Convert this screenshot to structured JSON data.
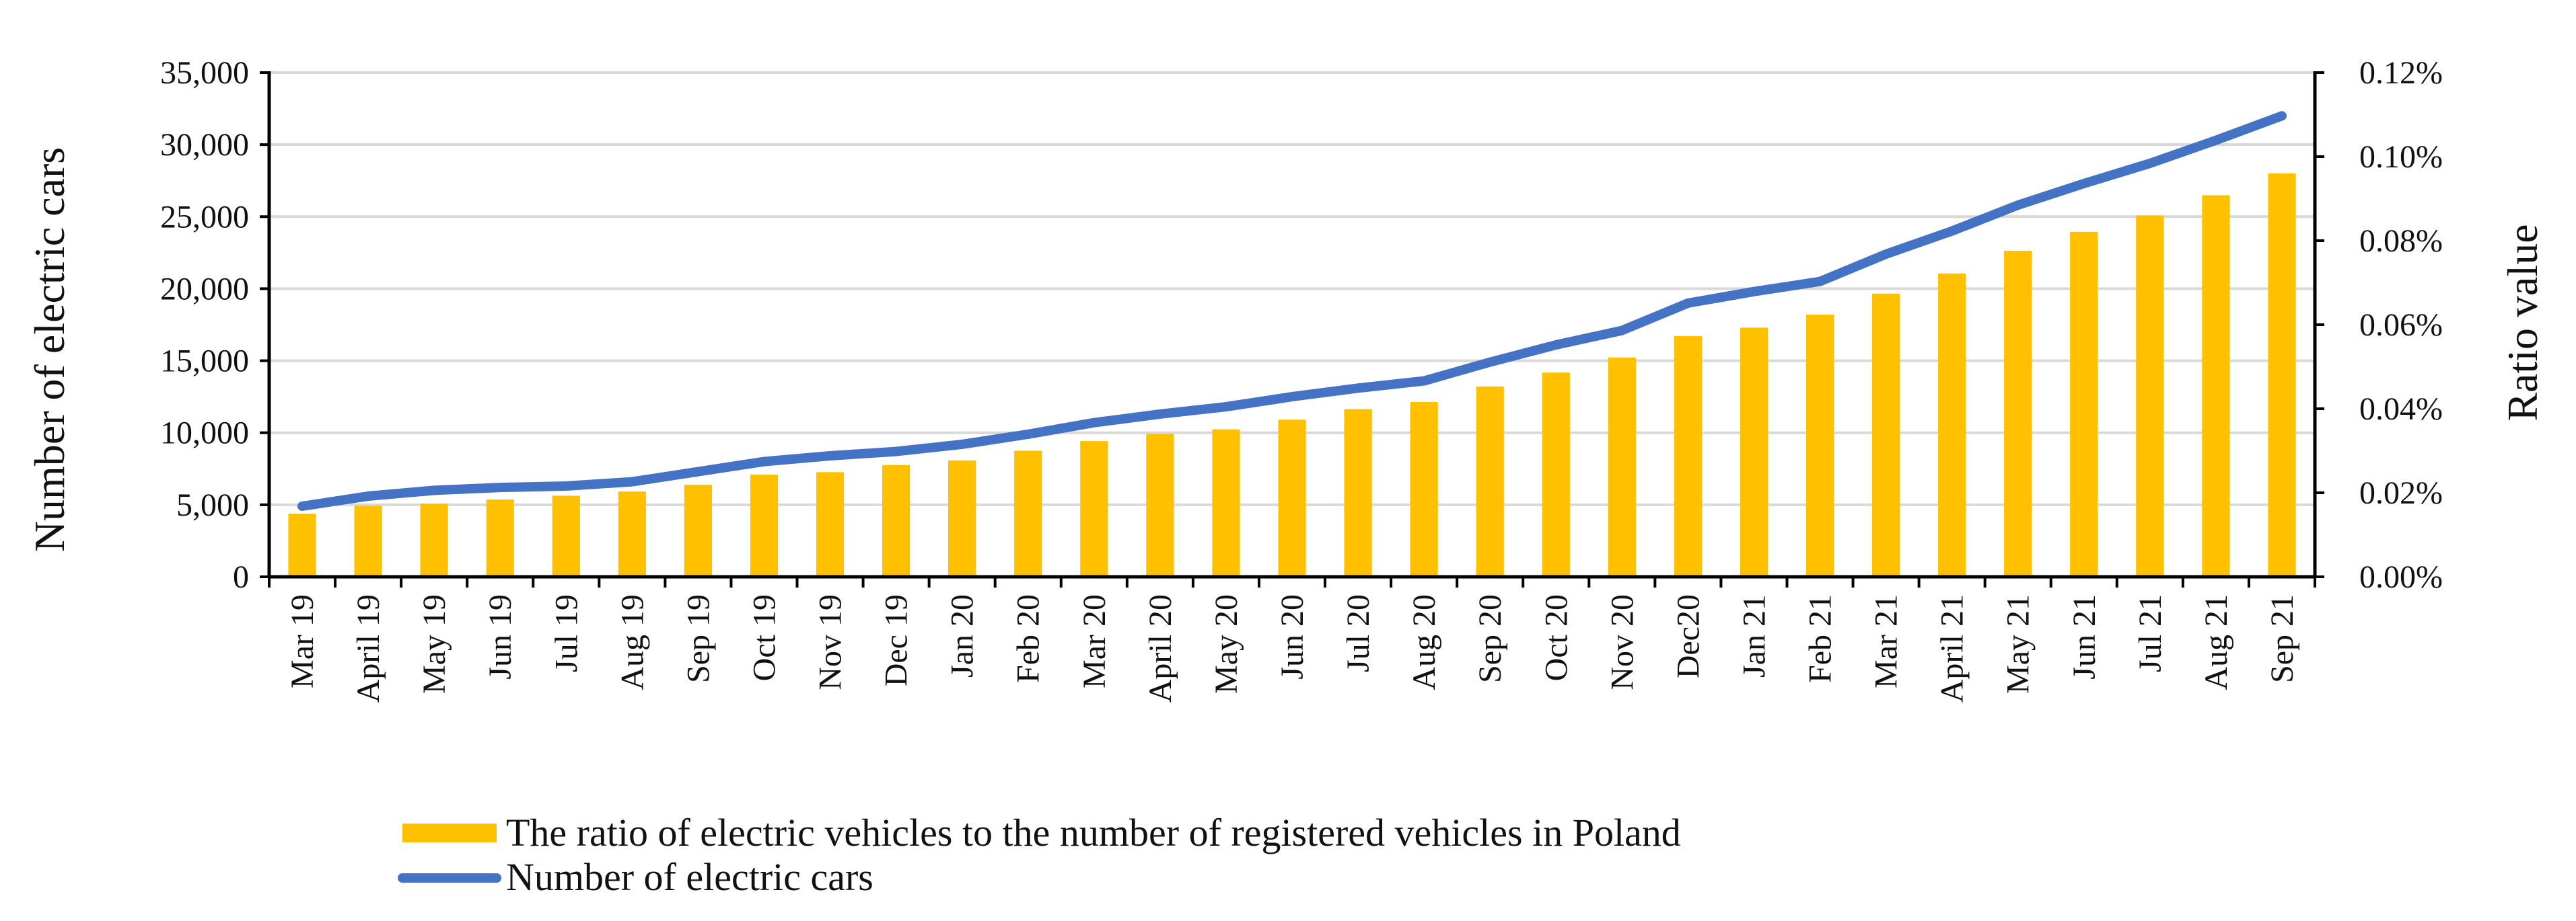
{
  "chart_data": {
    "type": "bar+line",
    "categories": [
      "Mar 19",
      "April 19",
      "May 19",
      "Jun 19",
      "Jul 19",
      "Aug 19",
      "Sep 19",
      "Oct 19",
      "Nov 19",
      "Dec 19",
      "Jan 20",
      "Feb 20",
      "Mar 20",
      "April 20",
      "May 20",
      "Jun 20",
      "Jul 20",
      "Aug 20",
      "Sep 20",
      "Oct 20",
      "Nov 20",
      "Dec20",
      "Jan 21",
      "Feb 21",
      "Mar 21",
      "April 21",
      "May 21",
      "Jun 21",
      "Jul 21",
      "Aug 21",
      "Sep 21"
    ],
    "series": [
      {
        "name": "The ratio of electric vehicles to the number of registered vehicles in Poland",
        "type": "bar",
        "axis": "right",
        "color": "#FFC000",
        "values": [
          0.015,
          0.0169,
          0.0174,
          0.0184,
          0.0193,
          0.0203,
          0.0219,
          0.0243,
          0.0249,
          0.0266,
          0.0277,
          0.03,
          0.0323,
          0.034,
          0.0351,
          0.0374,
          0.0399,
          0.0416,
          0.0453,
          0.0486,
          0.0522,
          0.0573,
          0.0593,
          0.0624,
          0.0674,
          0.0722,
          0.0776,
          0.0821,
          0.086,
          0.0908,
          0.096
        ]
      },
      {
        "name": "Number of electric cars",
        "type": "line",
        "axis": "left",
        "color": "#4472C4",
        "values": [
          4900,
          5600,
          6000,
          6200,
          6300,
          6600,
          7300,
          8000,
          8400,
          8700,
          9200,
          9900,
          10700,
          11300,
          11800,
          12500,
          13100,
          13600,
          14900,
          16100,
          17100,
          19000,
          19800,
          20500,
          22400,
          24000,
          25800,
          27300,
          28700,
          30300,
          32000
        ]
      }
    ],
    "y_left": {
      "label": "Number of electric cars",
      "ticks": [
        "0",
        "5,000",
        "10,000",
        "15,000",
        "20,000",
        "25,000",
        "30,000",
        "35,000"
      ],
      "range": [
        0,
        35000
      ]
    },
    "y_right": {
      "label": "Ratio value",
      "ticks": [
        "0.00%",
        "0.02%",
        "0.04%",
        "0.06%",
        "0.08%",
        "0.10%",
        "0.12%"
      ],
      "range": [
        0,
        0.12
      ]
    },
    "grid": true,
    "legend_position": "bottom"
  }
}
